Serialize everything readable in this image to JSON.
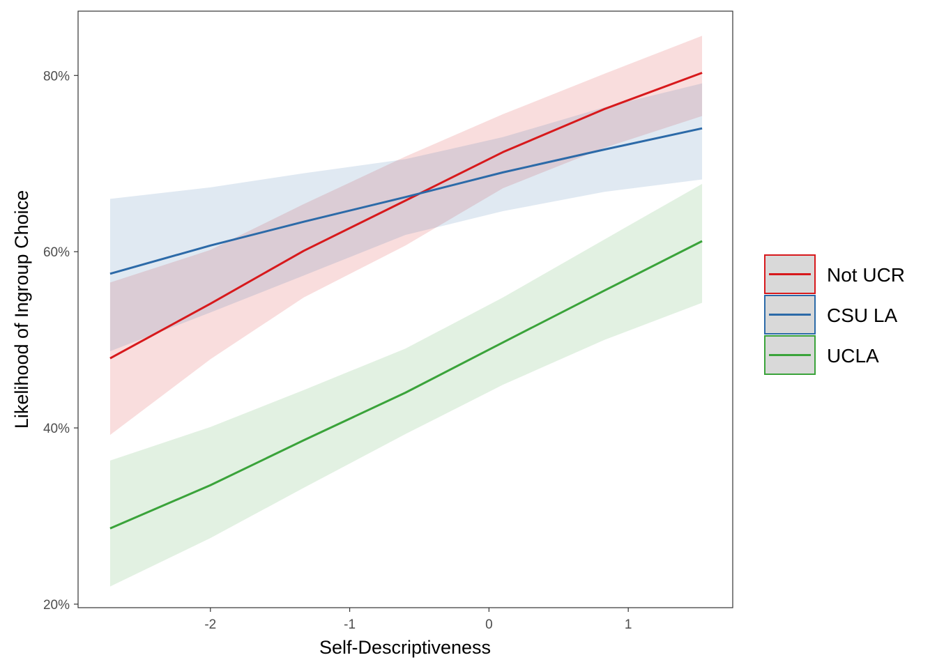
{
  "chart_data": {
    "type": "line",
    "title": "",
    "xlabel": "Self-Descriptiveness",
    "ylabel": "Likelihood of Ingroup Choice",
    "xlim": [
      -2.95,
      1.75
    ],
    "ylim": [
      0.196,
      0.873
    ],
    "xticks": [
      -2,
      -1,
      0,
      1
    ],
    "xtick_labels": [
      "-2",
      "-1",
      "0",
      "1"
    ],
    "yticks": [
      0.2,
      0.4,
      0.6,
      0.8
    ],
    "ytick_labels": [
      "20%",
      "40%",
      "60%",
      "80%"
    ],
    "grid": false,
    "legend_position": "right",
    "series": [
      {
        "name": "Not UCR",
        "color": "#d7191c",
        "x": [
          -2.72,
          -2.0,
          -1.33,
          -0.6,
          0.1,
          0.83,
          1.53
        ],
        "y": [
          0.479,
          0.541,
          0.601,
          0.658,
          0.713,
          0.762,
          0.803
        ],
        "ci_lower": [
          0.392,
          0.478,
          0.548,
          0.607,
          0.672,
          0.718,
          0.754
        ],
        "ci_upper": [
          0.565,
          0.602,
          0.654,
          0.708,
          0.756,
          0.802,
          0.845
        ]
      },
      {
        "name": "CSU LA",
        "color": "#2c6aa8",
        "x": [
          -2.72,
          -2.0,
          -1.33,
          -0.6,
          0.1,
          0.83,
          1.53
        ],
        "y": [
          0.575,
          0.607,
          0.634,
          0.662,
          0.69,
          0.716,
          0.74
        ],
        "ci_lower": [
          0.487,
          0.531,
          0.573,
          0.619,
          0.646,
          0.668,
          0.682
        ],
        "ci_upper": [
          0.66,
          0.673,
          0.689,
          0.705,
          0.73,
          0.764,
          0.791
        ]
      },
      {
        "name": "UCLA",
        "color": "#3aa33a",
        "x": [
          -2.72,
          -2.0,
          -1.33,
          -0.6,
          0.1,
          0.83,
          1.53
        ],
        "y": [
          0.286,
          0.335,
          0.386,
          0.44,
          0.497,
          0.556,
          0.612
        ],
        "ci_lower": [
          0.22,
          0.275,
          0.332,
          0.393,
          0.449,
          0.5,
          0.542
        ],
        "ci_upper": [
          0.363,
          0.401,
          0.443,
          0.49,
          0.548,
          0.614,
          0.677
        ]
      }
    ]
  }
}
